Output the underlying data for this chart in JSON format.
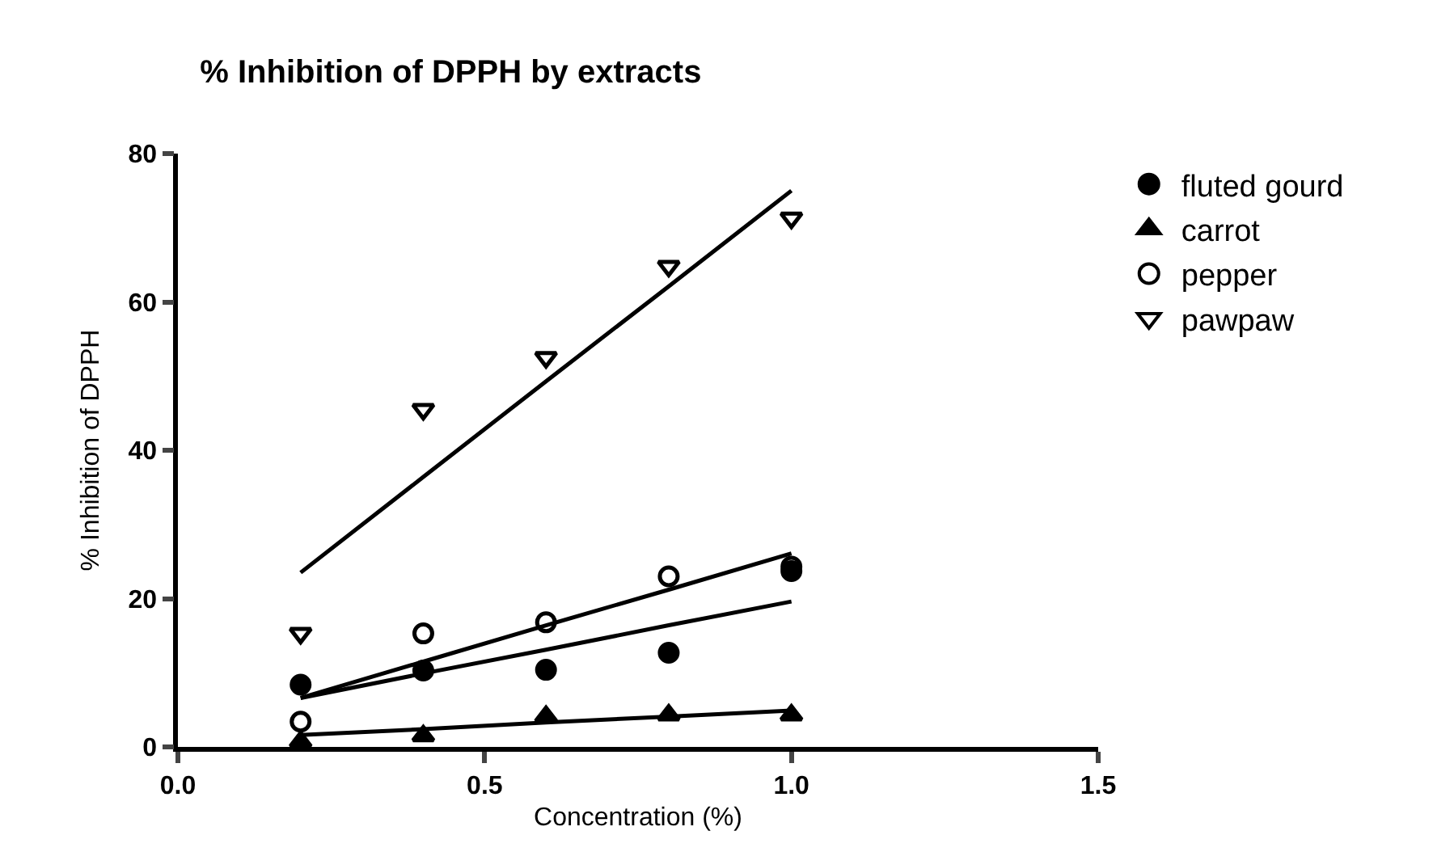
{
  "chart_data": {
    "type": "scatter",
    "title": "% Inhibition of DPPH by extracts",
    "xlabel": "Concentration (%)",
    "ylabel": "% Inhibition of DPPH",
    "x": [
      0.2,
      0.4,
      0.6,
      0.8,
      1.0
    ],
    "series": [
      {
        "name": "fluted gourd",
        "color": "#000000",
        "marker": "circle",
        "values": [
          8.4,
          10.3,
          10.4,
          12.7,
          23.7
        ]
      },
      {
        "name": "carrot",
        "color": "#000000",
        "marker": "triangle",
        "values": [
          0.7,
          1.5,
          4.1,
          4.3,
          4.3
        ]
      },
      {
        "name": "pepper",
        "color": "#000000",
        "marker": "circle-open",
        "values": [
          3.4,
          15.3,
          16.8,
          23,
          24.3
        ]
      },
      {
        "name": "pawpaw",
        "color": "#000000",
        "marker": "triangle-down-open",
        "values": [
          15.3,
          45.5,
          52.5,
          64.8,
          71.3
        ]
      },
      {
        "type": "line",
        "color": "#000000",
        "values": [
          6.6,
          9.9,
          13.1,
          16.4,
          19.6
        ]
      },
      {
        "type": "line",
        "color": "#000000",
        "values": [
          1.6,
          2.4,
          3.3,
          4.1,
          4.9
        ]
      },
      {
        "type": "line",
        "color": "#000000",
        "values": [
          6.6,
          11.5,
          16.4,
          21.2,
          26.1
        ]
      },
      {
        "type": "line",
        "color": "#000000",
        "values": [
          23.5,
          36.4,
          49.3,
          62.1,
          75
        ]
      }
    ],
    "xlim": [
      0,
      1.5
    ],
    "xticks": [
      {
        "value": 0,
        "label": "0.0"
      },
      {
        "value": 0.5,
        "label": "0.5"
      },
      {
        "value": 1,
        "label": "1.0"
      },
      {
        "value": 1.5,
        "label": "1.5"
      }
    ],
    "ylim": [
      0,
      80
    ],
    "yticks": [
      0,
      20,
      40,
      60,
      80
    ],
    "grid": false,
    "legend": "top right"
  }
}
